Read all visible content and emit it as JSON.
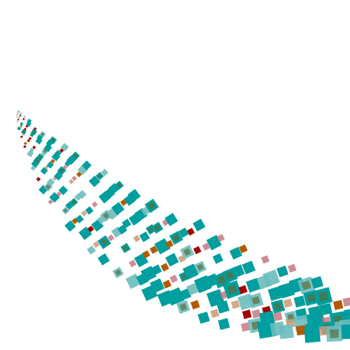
{
  "artwork": {
    "palette": {
      "teal": "#009e9e",
      "teal_light": "#6bbcbc",
      "orange": "#b35a00",
      "red": "#a30000",
      "tan": "#c89a76",
      "pink": "#c0707a",
      "olive": "#5a6e3a"
    },
    "rows": 28,
    "seed": 7
  }
}
